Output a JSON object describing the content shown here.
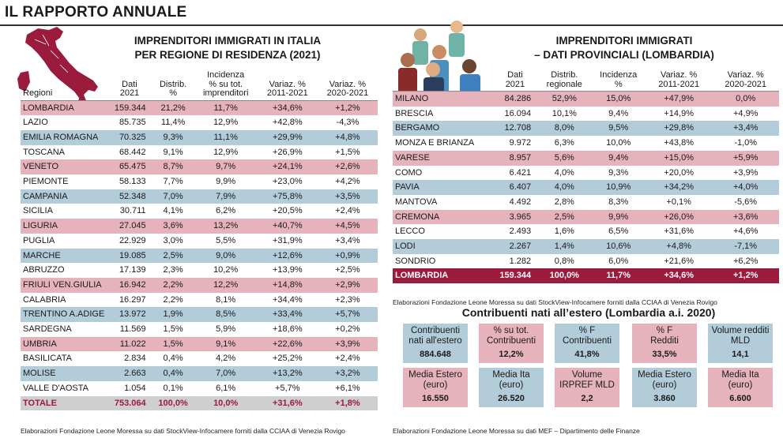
{
  "header": {
    "title": "IL RAPPORTO ANNUALE"
  },
  "left": {
    "title1": "IMPRENDITORI IMMIGRATI IN ITALIA",
    "title2": "PER REGIONE DI RESIDENZA (2021)",
    "col_regioni": "Regioni",
    "col_dati_1": "Dati",
    "col_dati_2": "2021",
    "col_distrib_1": "Distrib.",
    "col_distrib_2": "%",
    "col_incid_1": "Incidenza",
    "col_incid_2": "% su tot.",
    "col_incid_3": "imprenditori",
    "col_var1_1": "Variaz. %",
    "col_var1_2": "2011-2021",
    "col_var2_1": "Variaz. %",
    "col_var2_2": "2020-2021",
    "rows": [
      {
        "name": "LOMBARDIA",
        "dati": "159.344",
        "dist": "21,2%",
        "inc": "11,7%",
        "v1": "+34,6%",
        "v2": "+1,2%"
      },
      {
        "name": "LAZIO",
        "dati": "85.735",
        "dist": "11,4%",
        "inc": "12,9%",
        "v1": "+42,8%",
        "v2": "-4,3%"
      },
      {
        "name": "EMILIA ROMAGNA",
        "dati": "70.325",
        "dist": "9,3%",
        "inc": "11,1%",
        "v1": "+29,9%",
        "v2": "+4,8%"
      },
      {
        "name": "TOSCANA",
        "dati": "68.442",
        "dist": "9,1%",
        "inc": "12,9%",
        "v1": "+26,9%",
        "v2": "+1,5%"
      },
      {
        "name": "VENETO",
        "dati": "65.475",
        "dist": "8,7%",
        "inc": "9,7%",
        "v1": "+24,1%",
        "v2": "+2,6%"
      },
      {
        "name": "PIEMONTE",
        "dati": "58.133",
        "dist": "7,7%",
        "inc": "9,9%",
        "v1": "+23,0%",
        "v2": "+4,2%"
      },
      {
        "name": "CAMPANIA",
        "dati": "52.348",
        "dist": "7,0%",
        "inc": "7,9%",
        "v1": "+75,8%",
        "v2": "+3,5%"
      },
      {
        "name": "SICILIA",
        "dati": "30.711",
        "dist": "4,1%",
        "inc": "6,2%",
        "v1": "+20,5%",
        "v2": "+2,4%"
      },
      {
        "name": "LIGURIA",
        "dati": "27.045",
        "dist": "3,6%",
        "inc": "13,2%",
        "v1": "+40,7%",
        "v2": "+4,5%"
      },
      {
        "name": "PUGLIA",
        "dati": "22.929",
        "dist": "3,0%",
        "inc": "5,5%",
        "v1": "+31,9%",
        "v2": "+3,4%"
      },
      {
        "name": "MARCHE",
        "dati": "19.085",
        "dist": "2,5%",
        "inc": "9,0%",
        "v1": "+12,6%",
        "v2": "+0,9%"
      },
      {
        "name": "ABRUZZO",
        "dati": "17.139",
        "dist": "2,3%",
        "inc": "10,2%",
        "v1": "+13,9%",
        "v2": "+2,5%"
      },
      {
        "name": "FRIULI VEN.GIULIA",
        "dati": "16.942",
        "dist": "2,2%",
        "inc": "12,2%",
        "v1": "+14,8%",
        "v2": "+2,9%"
      },
      {
        "name": "CALABRIA",
        "dati": "16.297",
        "dist": "2,2%",
        "inc": "8,1%",
        "v1": "+34,4%",
        "v2": "+2,3%"
      },
      {
        "name": "TRENTINO A.ADIGE",
        "dati": "13.972",
        "dist": "1,9%",
        "inc": "8,5%",
        "v1": "+33,4%",
        "v2": "+5,7%"
      },
      {
        "name": "SARDEGNA",
        "dati": "11.569",
        "dist": "1,5%",
        "inc": "5,9%",
        "v1": "+18,6%",
        "v2": "+0,2%"
      },
      {
        "name": "UMBRIA",
        "dati": "11.022",
        "dist": "1,5%",
        "inc": "9,1%",
        "v1": "+22,6%",
        "v2": "+3,9%"
      },
      {
        "name": "BASILICATA",
        "dati": "2.834",
        "dist": "0,4%",
        "inc": "4,2%",
        "v1": "+25,2%",
        "v2": "+2,4%"
      },
      {
        "name": "MOLISE",
        "dati": "2.663",
        "dist": "0,4%",
        "inc": "7,0%",
        "v1": "+13,2%",
        "v2": "+3,2%"
      },
      {
        "name": "VALLE D'AOSTA",
        "dati": "1.054",
        "dist": "0,1%",
        "inc": "6,1%",
        "v1": "+5,7%",
        "v2": "+6,1%"
      }
    ],
    "total": {
      "name": "TOTALE",
      "dati": "753.064",
      "dist": "100,0%",
      "inc": "10,0%",
      "v1": "+31,6%",
      "v2": "+1,8%"
    },
    "note": "Elaborazioni Fondazione Leone Moressa su dati StockView-Infocamere forniti dalla CCIAA di Venezia Rovigo"
  },
  "right": {
    "title1": "IMPRENDITORI IMMIGRATI",
    "title2": "– DATI PROVINCIALI (LOMBARDIA)",
    "col_dati_1": "Dati",
    "col_dati_2": "2021",
    "col_distrib_1": "Distrib.",
    "col_distrib_2": "regionale",
    "col_incid_1": "Incidenza",
    "col_incid_2": "%",
    "col_var1_1": "Variaz. %",
    "col_var1_2": "2011-2021",
    "col_var2_1": "Variaz. %",
    "col_var2_2": "2020-2021",
    "rows": [
      {
        "name": "MILANO",
        "dati": "84.286",
        "dist": "52,9%",
        "inc": "15,0%",
        "v1": "+47,9%",
        "v2": "0,0%"
      },
      {
        "name": "BRESCIA",
        "dati": "16.094",
        "dist": "10,1%",
        "inc": "9,4%",
        "v1": "+14,9%",
        "v2": "+4,9%"
      },
      {
        "name": "BERGAMO",
        "dati": "12.708",
        "dist": "8,0%",
        "inc": "9,5%",
        "v1": "+29,8%",
        "v2": "+3,4%"
      },
      {
        "name": "MONZA E BRIANZA",
        "dati": "9.972",
        "dist": "6,3%",
        "inc": "10,0%",
        "v1": "+43,8%",
        "v2": "-1,0%"
      },
      {
        "name": "VARESE",
        "dati": "8.957",
        "dist": "5,6%",
        "inc": "9,4%",
        "v1": "+15,0%",
        "v2": "+5,9%"
      },
      {
        "name": "COMO",
        "dati": "6.421",
        "dist": "4,0%",
        "inc": "9,3%",
        "v1": "+20,0%",
        "v2": "+3,9%"
      },
      {
        "name": "PAVIA",
        "dati": "6.407",
        "dist": "4,0%",
        "inc": "10,9%",
        "v1": "+34,2%",
        "v2": "+4,0%"
      },
      {
        "name": "MANTOVA",
        "dati": "4.492",
        "dist": "2,8%",
        "inc": "8,3%",
        "v1": "+0,1%",
        "v2": "-5,6%"
      },
      {
        "name": "CREMONA",
        "dati": "3.965",
        "dist": "2,5%",
        "inc": "9,9%",
        "v1": "+26,0%",
        "v2": "+3,6%"
      },
      {
        "name": "LECCO",
        "dati": "2.493",
        "dist": "1,6%",
        "inc": "6,5%",
        "v1": "+31,6%",
        "v2": "+4,6%"
      },
      {
        "name": "LODI",
        "dati": "2.267",
        "dist": "1,4%",
        "inc": "10,6%",
        "v1": "+4,8%",
        "v2": "-7,1%"
      },
      {
        "name": "SONDRIO",
        "dati": "1.282",
        "dist": "0,8%",
        "inc": "6,0%",
        "v1": "+21,6%",
        "v2": "+6,2%"
      }
    ],
    "total": {
      "name": "LOMBARDIA",
      "dati": "159.344",
      "dist": "100,0%",
      "inc": "11,7%",
      "v1": "+34,6%",
      "v2": "+1,2%"
    },
    "note": "Elaborazioni Fondazione Leone Moressa su dati StockView-Infocamere forniti dalla CCIAA di Venezia Rovigo"
  },
  "contrib": {
    "title": "Contribuenti nati all’estero (Lombardia a.i. 2020)",
    "boxes": [
      {
        "l1": "Contribuenti",
        "l2": "nati all'estero",
        "val": "884.648"
      },
      {
        "l1": "% su tot.",
        "l2": "Contribuenti",
        "val": "12,2%"
      },
      {
        "l1": "% F",
        "l2": "Contribuenti",
        "val": "41,8%"
      },
      {
        "l1": "% F",
        "l2": "Redditi",
        "val": "33,5%"
      },
      {
        "l1": "Volume redditi",
        "l2": "MLD",
        "val": "14,1"
      },
      {
        "l1": "Media Estero",
        "l2": "(euro)",
        "val": "16.550"
      },
      {
        "l1": "Media Ita",
        "l2": "(euro)",
        "val": "26.520"
      },
      {
        "l1": "Volume",
        "l2": "IRPREF MLD",
        "val": "2,2"
      },
      {
        "l1": "Media Estero",
        "l2": "(euro)",
        "val": "3.860"
      },
      {
        "l1": "Media Ita",
        "l2": "(euro)",
        "val": "6.600"
      }
    ],
    "note": "Elaborazioni Fondazione Leone Moressa su dati MEF – Dipartimento delle Finanze"
  },
  "colors": {
    "pink": "#e6b3bd",
    "blue": "#b3ccd9",
    "maroon": "#9b1b3d",
    "grey": "#cfcfcf"
  },
  "icons": [
    "italy-map-icon",
    "people-group-icon"
  ]
}
